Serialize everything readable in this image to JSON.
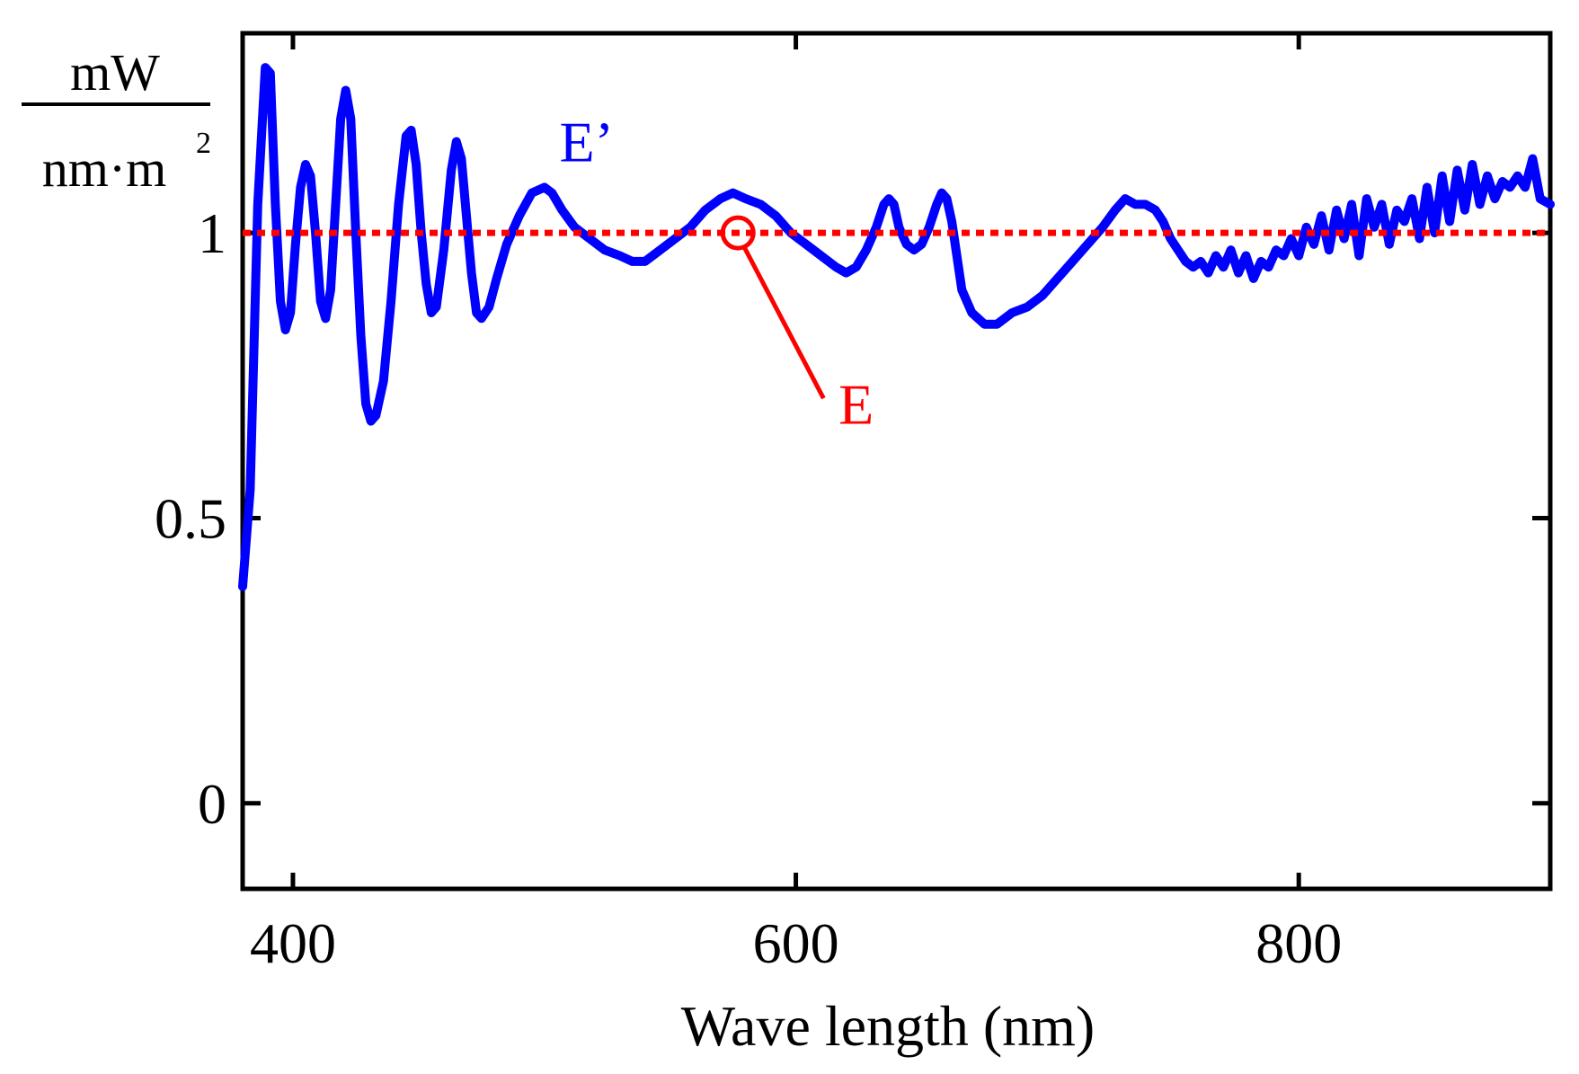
{
  "chart_data": {
    "type": "line",
    "title": "",
    "xlabel": "Wave length (nm)",
    "ylabel": {
      "numerator": "mW",
      "denominator": "nm·m",
      "denominator_exponent": "2"
    },
    "xlim": [
      380,
      900
    ],
    "ylim": [
      -0.15,
      1.35
    ],
    "x_ticks": [
      400,
      600,
      800
    ],
    "y_ticks": [
      0,
      0.5,
      1
    ],
    "x_tick_labels": [
      "400",
      "600",
      "800"
    ],
    "y_tick_labels": [
      "0",
      "0.5",
      "1"
    ],
    "grid": false,
    "series": [
      {
        "name": "E’",
        "color": "#0000ff",
        "style": "solid",
        "points": [
          [
            380,
            0.38
          ],
          [
            383,
            0.55
          ],
          [
            386,
            1.05
          ],
          [
            389,
            1.29
          ],
          [
            391,
            1.28
          ],
          [
            393,
            1.05
          ],
          [
            395,
            0.88
          ],
          [
            397,
            0.83
          ],
          [
            399,
            0.86
          ],
          [
            401,
            0.98
          ],
          [
            403,
            1.08
          ],
          [
            405,
            1.12
          ],
          [
            407,
            1.1
          ],
          [
            409,
            1.0
          ],
          [
            411,
            0.88
          ],
          [
            413,
            0.85
          ],
          [
            415,
            0.9
          ],
          [
            417,
            1.05
          ],
          [
            419,
            1.2
          ],
          [
            421,
            1.25
          ],
          [
            423,
            1.2
          ],
          [
            425,
            1.0
          ],
          [
            427,
            0.82
          ],
          [
            429,
            0.7
          ],
          [
            431,
            0.67
          ],
          [
            433,
            0.68
          ],
          [
            436,
            0.74
          ],
          [
            439,
            0.88
          ],
          [
            442,
            1.05
          ],
          [
            445,
            1.17
          ],
          [
            447,
            1.18
          ],
          [
            449,
            1.12
          ],
          [
            451,
            1.0
          ],
          [
            453,
            0.91
          ],
          [
            455,
            0.86
          ],
          [
            457,
            0.87
          ],
          [
            460,
            0.97
          ],
          [
            463,
            1.11
          ],
          [
            465,
            1.16
          ],
          [
            467,
            1.13
          ],
          [
            469,
            1.03
          ],
          [
            471,
            0.93
          ],
          [
            473,
            0.86
          ],
          [
            475,
            0.85
          ],
          [
            478,
            0.87
          ],
          [
            481,
            0.92
          ],
          [
            485,
            0.98
          ],
          [
            490,
            1.03
          ],
          [
            495,
            1.07
          ],
          [
            500,
            1.08
          ],
          [
            503,
            1.07
          ],
          [
            507,
            1.04
          ],
          [
            512,
            1.01
          ],
          [
            518,
            0.99
          ],
          [
            524,
            0.97
          ],
          [
            530,
            0.96
          ],
          [
            535,
            0.95
          ],
          [
            540,
            0.95
          ],
          [
            546,
            0.97
          ],
          [
            552,
            0.99
          ],
          [
            558,
            1.01
          ],
          [
            564,
            1.04
          ],
          [
            570,
            1.06
          ],
          [
            575,
            1.07
          ],
          [
            580,
            1.06
          ],
          [
            586,
            1.05
          ],
          [
            592,
            1.03
          ],
          [
            598,
            1.0
          ],
          [
            604,
            0.98
          ],
          [
            610,
            0.96
          ],
          [
            616,
            0.94
          ],
          [
            620,
            0.93
          ],
          [
            624,
            0.94
          ],
          [
            628,
            0.97
          ],
          [
            632,
            1.01
          ],
          [
            635,
            1.05
          ],
          [
            637,
            1.06
          ],
          [
            639,
            1.05
          ],
          [
            641,
            1.01
          ],
          [
            644,
            0.98
          ],
          [
            647,
            0.97
          ],
          [
            650,
            0.98
          ],
          [
            653,
            1.01
          ],
          [
            656,
            1.05
          ],
          [
            658,
            1.07
          ],
          [
            660,
            1.06
          ],
          [
            662,
            1.02
          ],
          [
            664,
            0.96
          ],
          [
            666,
            0.9
          ],
          [
            670,
            0.86
          ],
          [
            675,
            0.84
          ],
          [
            680,
            0.84
          ],
          [
            686,
            0.86
          ],
          [
            692,
            0.87
          ],
          [
            698,
            0.89
          ],
          [
            704,
            0.92
          ],
          [
            710,
            0.95
          ],
          [
            716,
            0.98
          ],
          [
            722,
            1.01
          ],
          [
            727,
            1.04
          ],
          [
            731,
            1.06
          ],
          [
            735,
            1.05
          ],
          [
            739,
            1.05
          ],
          [
            743,
            1.04
          ],
          [
            746,
            1.02
          ],
          [
            749,
            0.99
          ],
          [
            752,
            0.97
          ],
          [
            755,
            0.95
          ],
          [
            758,
            0.94
          ],
          [
            761,
            0.95
          ],
          [
            764,
            0.93
          ],
          [
            767,
            0.96
          ],
          [
            770,
            0.94
          ],
          [
            773,
            0.97
          ],
          [
            776,
            0.93
          ],
          [
            779,
            0.96
          ],
          [
            782,
            0.92
          ],
          [
            785,
            0.95
          ],
          [
            788,
            0.94
          ],
          [
            791,
            0.97
          ],
          [
            794,
            0.96
          ],
          [
            797,
            0.99
          ],
          [
            800,
            0.96
          ],
          [
            803,
            1.01
          ],
          [
            806,
            0.98
          ],
          [
            809,
            1.03
          ],
          [
            812,
            0.97
          ],
          [
            815,
            1.04
          ],
          [
            818,
            0.99
          ],
          [
            821,
            1.05
          ],
          [
            824,
            0.96
          ],
          [
            827,
            1.06
          ],
          [
            830,
            1.01
          ],
          [
            833,
            1.05
          ],
          [
            836,
            0.98
          ],
          [
            839,
            1.04
          ],
          [
            842,
            1.02
          ],
          [
            845,
            1.06
          ],
          [
            848,
            0.99
          ],
          [
            851,
            1.08
          ],
          [
            854,
            1.0
          ],
          [
            857,
            1.1
          ],
          [
            860,
            1.02
          ],
          [
            863,
            1.11
          ],
          [
            866,
            1.04
          ],
          [
            869,
            1.12
          ],
          [
            872,
            1.05
          ],
          [
            875,
            1.1
          ],
          [
            878,
            1.06
          ],
          [
            881,
            1.09
          ],
          [
            884,
            1.08
          ],
          [
            887,
            1.1
          ],
          [
            890,
            1.08
          ],
          [
            893,
            1.13
          ],
          [
            896,
            1.06
          ],
          [
            900,
            1.05
          ]
        ]
      },
      {
        "name": "E",
        "color": "#ff0000",
        "style": "dotted",
        "points": [
          [
            380,
            1.0
          ],
          [
            900,
            1.0
          ]
        ]
      }
    ],
    "annotations": [
      {
        "text": "E’",
        "color": "#0000ff",
        "anchor": [
          506,
          1.16
        ]
      },
      {
        "text": "E",
        "color": "#ff0000",
        "marker": [
          577,
          1.0
        ],
        "leader_to": [
          611,
          0.71
        ],
        "anchor": [
          617,
          0.7
        ]
      }
    ]
  }
}
